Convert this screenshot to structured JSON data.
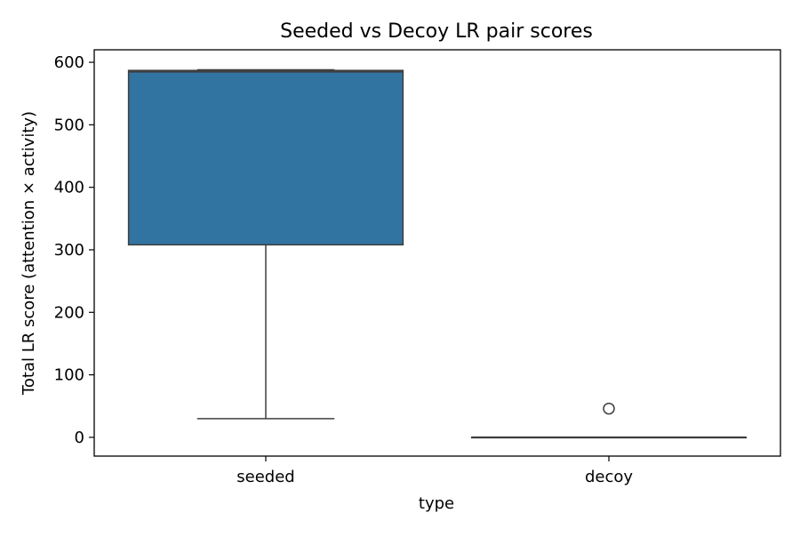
{
  "chart_data": {
    "type": "box",
    "title": "Seeded vs Decoy LR pair scores",
    "xlabel": "type",
    "ylabel": "Total LR score (attention × activity)",
    "ylim": [
      -30,
      620
    ],
    "yticks": [
      0,
      100,
      200,
      300,
      400,
      500,
      600
    ],
    "grid": false,
    "categories": [
      "seeded",
      "decoy"
    ],
    "boxes": [
      {
        "category": "seeded",
        "whisker_low": 30,
        "q1": 308,
        "median": 585,
        "q3": 587,
        "whisker_high": 588,
        "outliers": [],
        "color": "#3274a1"
      },
      {
        "category": "decoy",
        "whisker_low": 0,
        "q1": 0,
        "median": 0,
        "q3": 0,
        "whisker_high": 0,
        "outliers": [
          46
        ],
        "color": "#3274a1"
      }
    ],
    "line_color": "#3f3f3f"
  }
}
